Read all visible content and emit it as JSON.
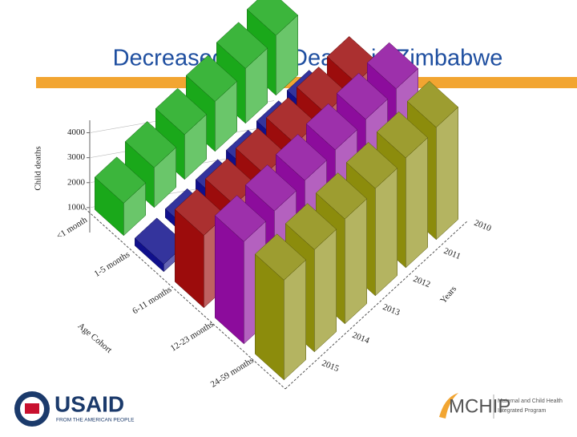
{
  "slide": {
    "title": "Decreased Child Deaths in Zimbabwe",
    "logos": {
      "usaid": "USAID",
      "usaid_tagline": "FROM THE AMERICAN PEOPLE",
      "mchip": "MCHIP",
      "mchip_line1": "Maternal and Child Health",
      "mchip_line2": "Integrated Program"
    }
  },
  "chart_data": {
    "type": "bar3d",
    "y_label": "Child deaths",
    "x_label": "Years",
    "z_label": "Age Cohort",
    "categories": [
      "2010",
      "2011",
      "2012",
      "2013",
      "2014",
      "2015"
    ],
    "series": [
      {
        "name": "<1 month",
        "color": "#1aa81a",
        "values": [
          2400,
          2200,
          2000,
          1800,
          1600,
          1300
        ]
      },
      {
        "name": "1-5 months",
        "color": "#10108c",
        "values": [
          600,
          500,
          450,
          400,
          350,
          300
        ]
      },
      {
        "name": "6-11 months",
        "color": "#9c0c0c",
        "values": [
          3400,
          3300,
          3200,
          3100,
          3000,
          2900
        ]
      },
      {
        "name": "12-23 months",
        "color": "#8c0c9c",
        "values": [
          4600,
          4500,
          4400,
          4300,
          4200,
          4100
        ]
      },
      {
        "name": "24-59 months",
        "color": "#8c8c0c",
        "values": [
          4500,
          4400,
          4300,
          4200,
          4100,
          4000
        ]
      }
    ],
    "ylim": [
      0,
      4500
    ],
    "yticks": [
      1000,
      2000,
      3000,
      4000
    ],
    "grid": true
  }
}
